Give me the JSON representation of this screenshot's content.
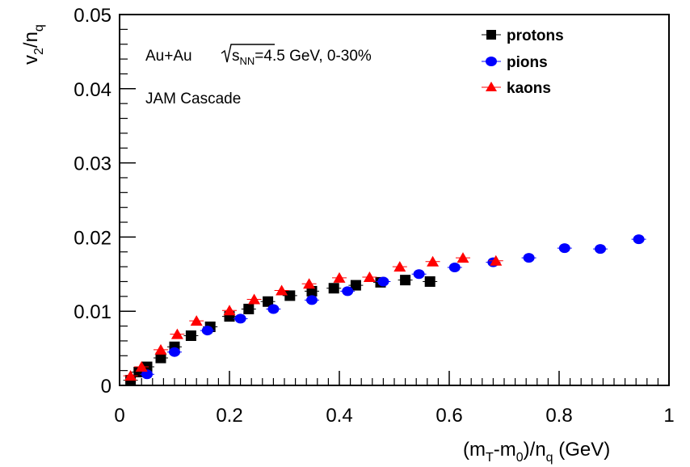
{
  "chart_data": {
    "type": "scatter",
    "title": "",
    "xlabel": "(m_T-m_0)/n_q (GeV)",
    "ylabel": "v_2/n_q",
    "xlim": [
      0,
      1
    ],
    "ylim": [
      0,
      0.05
    ],
    "x_ticks": [
      "0",
      "0.2",
      "0.4",
      "0.6",
      "0.8",
      "1"
    ],
    "x_tick_values": [
      0,
      0.2,
      0.4,
      0.6,
      0.8,
      1
    ],
    "y_ticks": [
      "0",
      "0.01",
      "0.02",
      "0.03",
      "0.04",
      "0.05"
    ],
    "y_tick_values": [
      0,
      0.01,
      0.02,
      0.03,
      0.04,
      0.05
    ],
    "grid": false,
    "legend_position": "top-right",
    "annotations": {
      "collision": "Au+Au",
      "energy": "=4.5 GeV, 0-30%",
      "sqrt_s": "s",
      "sqrt_s_sub": "NN",
      "model": "JAM Cascade"
    },
    "series": [
      {
        "name": "protons",
        "marker": "square",
        "color": "#000000",
        "x": [
          0.02,
          0.035,
          0.05,
          0.075,
          0.1,
          0.13,
          0.165,
          0.2,
          0.235,
          0.27,
          0.31,
          0.35,
          0.39,
          0.43,
          0.475,
          0.52,
          0.565
        ],
        "y": [
          0.0007,
          0.0018,
          0.0025,
          0.0037,
          0.0052,
          0.0067,
          0.0079,
          0.0093,
          0.0103,
          0.0113,
          0.0121,
          0.0127,
          0.0131,
          0.0135,
          0.0139,
          0.0142,
          0.014
        ]
      },
      {
        "name": "pions",
        "marker": "circle",
        "color": "#0000ff",
        "x": [
          0.05,
          0.1,
          0.16,
          0.22,
          0.28,
          0.35,
          0.415,
          0.48,
          0.545,
          0.61,
          0.68,
          0.745,
          0.81,
          0.875,
          0.945
        ],
        "y": [
          0.0015,
          0.0045,
          0.0074,
          0.009,
          0.0103,
          0.0115,
          0.0127,
          0.014,
          0.015,
          0.0159,
          0.0166,
          0.0172,
          0.0185,
          0.0184,
          0.0197
        ]
      },
      {
        "name": "kaons",
        "marker": "triangle",
        "color": "#ff0000",
        "x": [
          0.02,
          0.04,
          0.075,
          0.105,
          0.14,
          0.2,
          0.245,
          0.295,
          0.345,
          0.4,
          0.455,
          0.51,
          0.57,
          0.625,
          0.685
        ],
        "y": [
          0.0013,
          0.0025,
          0.0048,
          0.0069,
          0.0087,
          0.0101,
          0.0116,
          0.0128,
          0.0137,
          0.0145,
          0.0146,
          0.016,
          0.0167,
          0.0172,
          0.0168
        ]
      }
    ]
  }
}
